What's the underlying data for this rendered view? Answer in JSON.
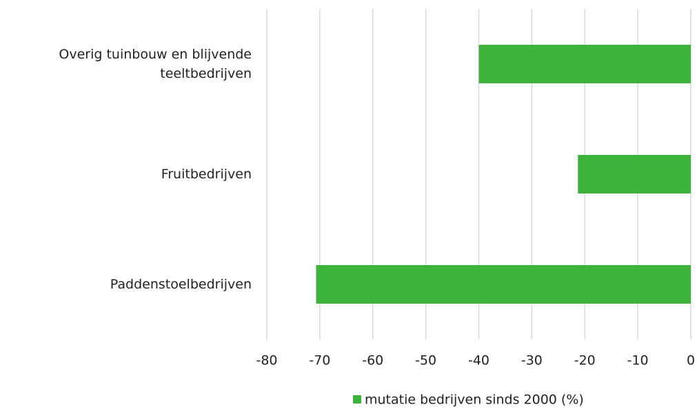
{
  "chart_data": {
    "type": "bar",
    "orientation": "horizontal",
    "categories": [
      "Overig tuinbouw en blijvende teeltbedrijven",
      "Fruitbedrijven",
      "Paddenstoelbedrijven"
    ],
    "series": [
      {
        "name": "mutatie bedrijven sinds 2000 (%)",
        "color": "#3cb43c",
        "values": [
          -40,
          -21.3,
          -70.7
        ]
      }
    ],
    "xlim": [
      -80,
      0
    ],
    "xticks": [
      -80,
      -70,
      -60,
      -50,
      -40,
      -30,
      -20,
      -10,
      0
    ],
    "grid": true,
    "legend": "bottom"
  }
}
